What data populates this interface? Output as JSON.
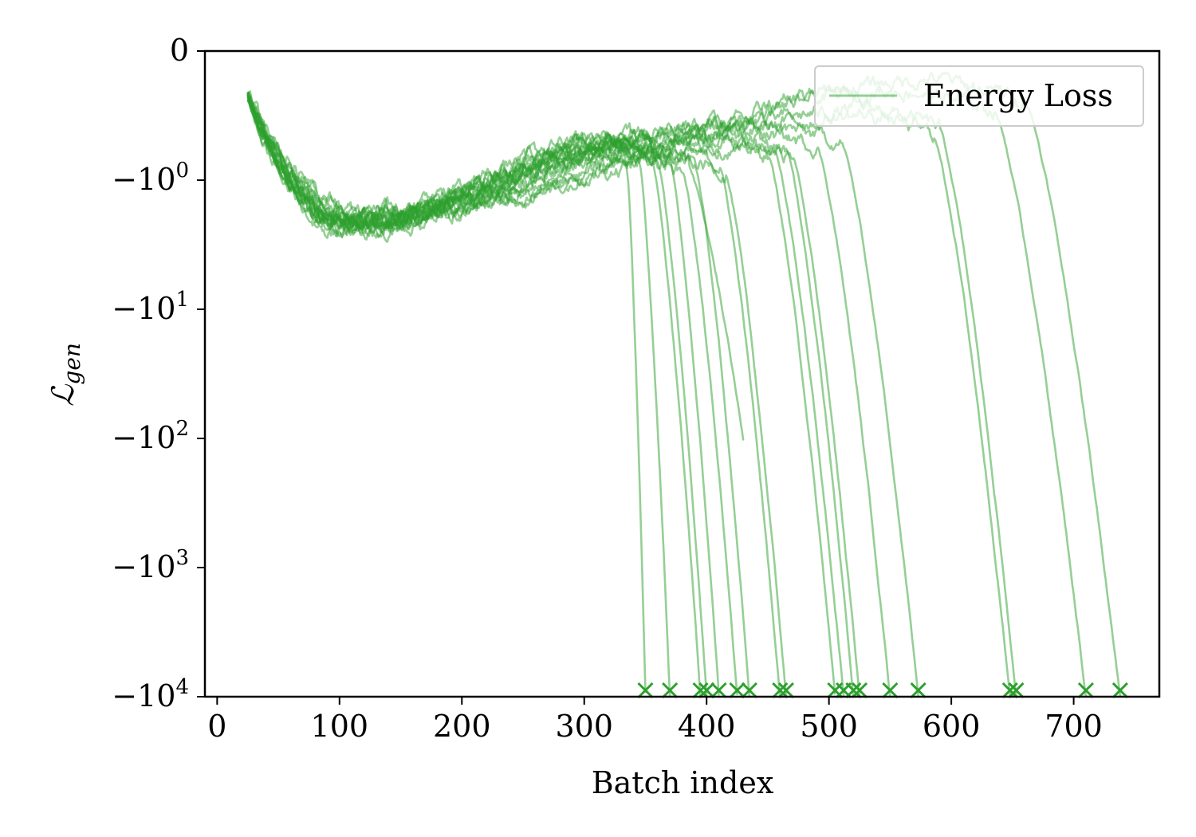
{
  "chart_data": {
    "type": "line",
    "title": "",
    "xlabel": "Batch index",
    "ylabel": "ℒgen",
    "ylabel_main": "ℒ",
    "ylabel_sub": "gen",
    "xlim": [
      -10,
      770
    ],
    "xticks": [
      0,
      100,
      200,
      300,
      400,
      500,
      600,
      700
    ],
    "ylim": [
      -10000,
      0
    ],
    "yscale": "symlog",
    "linthresh": 1,
    "yticks": [
      {
        "value": 0,
        "label": "0",
        "mant": "0",
        "exp": ""
      },
      {
        "value": -1,
        "label": "-10^0",
        "mant": "−10",
        "exp": "0"
      },
      {
        "value": -10,
        "label": "-10^1",
        "mant": "−10",
        "exp": "1"
      },
      {
        "value": -100,
        "label": "-10^2",
        "mant": "−10",
        "exp": "2"
      },
      {
        "value": -1000,
        "label": "-10^3",
        "mant": "−10",
        "exp": "3"
      },
      {
        "value": -10000,
        "label": "-10^4",
        "mant": "−10",
        "exp": "4"
      }
    ],
    "grid": false,
    "legend": {
      "position": "top-right",
      "entries": [
        "Energy Loss"
      ]
    },
    "color": "#2ca02c",
    "series_common": {
      "name": "Energy Loss",
      "start_x": 25,
      "start_y": -0.35,
      "terminal_marker": "x",
      "terminal_y": -10000
    },
    "series": [
      {
        "min_x": 100,
        "min_y": -2.1,
        "peak_x": 330,
        "peak_y": -0.75,
        "break_x": 335,
        "end_x": 350
      },
      {
        "min_x": 105,
        "min_y": -1.9,
        "peak_x": 320,
        "peak_y": -0.7,
        "break_x": 345,
        "end_x": 370
      },
      {
        "min_x": 110,
        "min_y": -2.4,
        "peak_x": 320,
        "peak_y": -0.68,
        "break_x": 355,
        "end_x": 395
      },
      {
        "min_x": 100,
        "min_y": -2.2,
        "peak_x": 325,
        "peak_y": -0.72,
        "break_x": 360,
        "end_x": 400
      },
      {
        "min_x": 95,
        "min_y": -2.0,
        "peak_x": 340,
        "peak_y": -0.7,
        "break_x": 370,
        "end_x": 410
      },
      {
        "min_x": 115,
        "min_y": -2.3,
        "peak_x": 330,
        "peak_y": -0.76,
        "break_x": 380,
        "end_x": 425
      },
      {
        "min_x": 110,
        "min_y": -2.0,
        "peak_x": 335,
        "peak_y": -0.74,
        "break_x": 390,
        "end_x": 435
      },
      {
        "min_x": 100,
        "min_y": -2.5,
        "peak_x": 345,
        "peak_y": -0.72,
        "break_x": 410,
        "end_x": 460
      },
      {
        "min_x": 105,
        "min_y": -2.2,
        "peak_x": 350,
        "peak_y": -0.78,
        "break_x": 415,
        "end_x": 465
      },
      {
        "min_x": 120,
        "min_y": -2.1,
        "peak_x": 360,
        "peak_y": -0.65,
        "break_x": 450,
        "end_x": 505
      },
      {
        "min_x": 110,
        "min_y": -2.3,
        "peak_x": 370,
        "peak_y": -0.6,
        "break_x": 455,
        "end_x": 512
      },
      {
        "min_x": 100,
        "min_y": -2.0,
        "peak_x": 380,
        "peak_y": -0.62,
        "break_x": 465,
        "end_x": 520
      },
      {
        "min_x": 115,
        "min_y": -2.4,
        "peak_x": 385,
        "peak_y": -0.66,
        "break_x": 470,
        "end_x": 525
      },
      {
        "min_x": 120,
        "min_y": -2.2,
        "peak_x": 420,
        "peak_y": -0.58,
        "break_x": 490,
        "end_x": 550
      },
      {
        "min_x": 110,
        "min_y": -2.1,
        "peak_x": 440,
        "peak_y": -0.55,
        "break_x": 510,
        "end_x": 573
      },
      {
        "min_x": 120,
        "min_y": -1.9,
        "peak_x": 540,
        "peak_y": -0.5,
        "break_x": 585,
        "end_x": 648
      },
      {
        "min_x": 125,
        "min_y": -1.9,
        "peak_x": 545,
        "peak_y": -0.45,
        "break_x": 590,
        "end_x": 653
      },
      {
        "min_x": 130,
        "min_y": -1.8,
        "peak_x": 570,
        "peak_y": -0.3,
        "break_x": 635,
        "end_x": 710
      },
      {
        "min_x": 130,
        "min_y": -2.0,
        "peak_x": 590,
        "peak_y": -0.22,
        "break_x": 660,
        "end_x": 738
      },
      {
        "min_x": 110,
        "min_y": -2.3,
        "peak_x": 340,
        "peak_y": -0.74,
        "break_x": 385,
        "end_x": 430,
        "truncated_y": -100
      }
    ]
  }
}
